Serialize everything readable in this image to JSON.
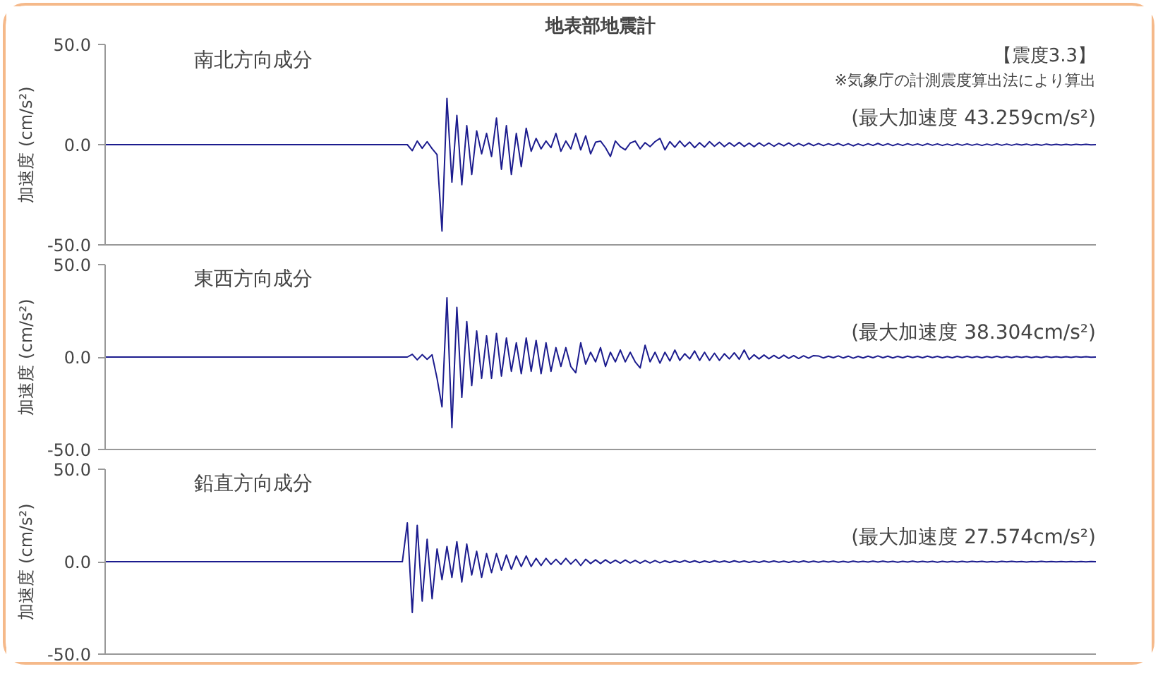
{
  "chart_data": [
    {
      "type": "line",
      "title": "地表部地震計",
      "subtitle": "南北方向成分",
      "ylabel": "加速度 (cm/s²)",
      "annotations": [
        "【震度3.3】",
        "※気象庁の計測震度算出法により算出",
        "(最大加速度 43.259cm/s²)"
      ],
      "ylim": [
        -50,
        50
      ],
      "yticks": [
        {
          "value": 50,
          "label": "50.0"
        },
        {
          "value": 0,
          "label": "0.0"
        },
        {
          "value": -50,
          "label": "-50.0"
        }
      ],
      "categories": [
        null,
        null,
        null,
        null,
        null,
        null,
        null,
        null,
        null,
        null,
        null,
        null,
        null,
        null,
        null,
        null,
        null,
        null,
        null,
        null,
        null,
        null,
        null,
        null,
        null,
        null,
        null,
        null,
        null,
        null,
        null,
        null,
        null,
        null,
        null,
        null,
        null,
        null,
        null,
        null,
        null,
        null,
        null,
        null,
        null,
        null,
        null,
        null,
        null,
        null,
        null,
        null,
        null,
        null,
        null,
        null,
        null,
        null,
        null,
        null,
        null,
        null,
        null,
        null,
        null,
        null,
        null,
        null,
        null,
        null,
        null,
        null,
        null,
        null,
        null,
        null,
        null,
        null,
        null,
        null,
        null,
        null,
        null,
        null,
        null,
        null,
        null,
        null,
        null,
        null,
        null,
        null,
        null,
        null,
        null,
        null,
        null,
        null,
        null,
        null,
        null,
        null,
        null,
        null,
        null,
        null,
        null,
        null,
        null,
        null,
        null,
        null,
        null,
        null,
        null,
        null,
        null,
        null,
        null,
        null,
        null,
        null,
        null,
        null,
        null,
        null,
        null,
        null,
        null,
        null,
        null,
        null,
        null,
        null,
        null,
        null,
        null,
        null,
        null,
        null,
        null,
        null,
        null,
        null,
        null,
        null,
        null,
        null,
        null,
        null,
        null,
        null,
        null,
        null,
        null,
        null,
        null,
        null,
        null,
        null,
        null,
        null,
        null,
        null,
        null,
        null,
        null,
        null,
        null,
        null,
        null,
        null,
        null,
        null,
        null,
        null,
        null,
        null,
        null,
        null,
        null,
        null,
        null,
        null,
        null,
        null,
        null,
        null,
        null,
        null,
        null,
        null,
        null,
        null,
        null,
        null,
        null,
        null,
        null,
        null,
        null
      ],
      "series": [
        {
          "color": "#1c1c8e",
          "values": [
            0,
            0,
            0,
            0,
            0,
            0,
            0,
            0,
            0,
            0,
            0,
            0,
            0,
            0,
            0,
            0,
            0,
            0,
            0,
            0,
            0,
            0,
            0,
            0,
            0,
            0,
            0,
            0,
            0,
            0,
            0,
            0,
            0,
            0,
            0,
            0,
            0,
            0,
            0,
            0,
            0,
            0,
            0,
            0,
            0,
            0,
            0,
            0,
            0,
            0,
            0,
            0,
            0,
            0,
            0,
            0,
            0,
            0,
            0,
            0,
            0,
            0,
            -3,
            1.8,
            -1.8,
            1.5,
            -2,
            -5,
            -43.1,
            23.1,
            -18.7,
            14.6,
            -20.0,
            9.5,
            -14.9,
            6.9,
            -4.6,
            5.6,
            -5.9,
            13.3,
            -12.3,
            9.5,
            -14.9,
            5.6,
            -11.0,
            8.2,
            -3.3,
            3.1,
            -2.1,
            1.8,
            -1.5,
            5.6,
            -3.3,
            1.8,
            -2.1,
            5.6,
            -2.6,
            4.4,
            -4.6,
            1.2,
            1.8,
            -1.5,
            -5.9,
            1.8,
            -1.0,
            -2.6,
            0.8,
            1.8,
            -2.1,
            1.0,
            -1.0,
            1.5,
            3.1,
            -2.6,
            1.5,
            -1.3,
            1.8,
            -1.0,
            1.3,
            -1.5,
            1.0,
            -1.2,
            1.5,
            -0.8,
            1.2,
            -1.0,
            1.0,
            -0.8,
            1.1,
            -0.9,
            0.8,
            -1.0,
            0.9,
            -0.7,
            0.8,
            -0.8,
            0.7,
            -0.6,
            0.8,
            -0.7,
            0.6,
            -0.6,
            0.7,
            -0.5,
            0.6,
            -0.5,
            0.5,
            -0.4,
            0.6,
            -0.5,
            0.5,
            -0.6,
            0.4,
            -0.5,
            0.5,
            -0.4,
            0.6,
            -0.4,
            0.5,
            -0.5,
            0.4,
            -0.4,
            0.5,
            -0.3,
            0.4,
            -0.4,
            0.5,
            -0.3,
            0.4,
            -0.4,
            0.3,
            -0.4,
            0.4,
            -0.3,
            0.4,
            -0.3,
            0.3,
            -0.4,
            0.3,
            -0.3,
            0.4,
            -0.3,
            0.3,
            -0.3,
            0.3,
            -0.2,
            0.3,
            -0.3,
            0.2,
            -0.3,
            0.3,
            -0.2,
            0.2,
            -0.2,
            0.2,
            -0.2,
            0.2,
            -0.1,
            0.2,
            -0.1,
            0
          ]
        }
      ]
    },
    {
      "type": "line",
      "subtitle": "東西方向成分",
      "ylabel": "加速度 (cm/s²)",
      "annotations": [
        "(最大加速度 38.304cm/s²)"
      ],
      "ylim": [
        -50,
        50
      ],
      "yticks": [
        {
          "value": 50,
          "label": "50.0"
        },
        {
          "value": 0,
          "label": "0.0"
        },
        {
          "value": -50,
          "label": "-50.0"
        }
      ],
      "categories": [
        null,
        null,
        null,
        null,
        null,
        null,
        null,
        null,
        null,
        null,
        null,
        null,
        null,
        null,
        null,
        null,
        null,
        null,
        null,
        null,
        null,
        null,
        null,
        null,
        null,
        null,
        null,
        null,
        null,
        null,
        null,
        null,
        null,
        null,
        null,
        null,
        null,
        null,
        null,
        null,
        null,
        null,
        null,
        null,
        null,
        null,
        null,
        null,
        null,
        null,
        null,
        null,
        null,
        null,
        null,
        null,
        null,
        null,
        null,
        null,
        null,
        null,
        null,
        null,
        null,
        null,
        null,
        null,
        null,
        null,
        null,
        null,
        null,
        null,
        null,
        null,
        null,
        null,
        null,
        null,
        null,
        null,
        null,
        null,
        null,
        null,
        null,
        null,
        null,
        null,
        null,
        null,
        null,
        null,
        null,
        null,
        null,
        null,
        null,
        null,
        null,
        null,
        null,
        null,
        null,
        null,
        null,
        null,
        null,
        null,
        null,
        null,
        null,
        null,
        null,
        null,
        null,
        null,
        null,
        null,
        null,
        null,
        null,
        null,
        null,
        null,
        null,
        null,
        null,
        null,
        null,
        null,
        null,
        null,
        null,
        null,
        null,
        null,
        null,
        null,
        null,
        null,
        null,
        null,
        null,
        null,
        null,
        null,
        null,
        null,
        null,
        null,
        null,
        null,
        null,
        null,
        null,
        null,
        null,
        null,
        null,
        null,
        null,
        null,
        null,
        null,
        null,
        null,
        null,
        null,
        null,
        null,
        null,
        null,
        null,
        null,
        null,
        null,
        null,
        null,
        null,
        null,
        null,
        null,
        null,
        null,
        null,
        null,
        null,
        null,
        null,
        null,
        null,
        null,
        null,
        null,
        null,
        null,
        null,
        null,
        null
      ],
      "series": [
        {
          "color": "#1c1c8e",
          "values": [
            0,
            0,
            0,
            0,
            0,
            0,
            0,
            0,
            0,
            0,
            0,
            0,
            0,
            0,
            0,
            0,
            0,
            0,
            0,
            0,
            0,
            0,
            0,
            0,
            0,
            0,
            0,
            0,
            0,
            0,
            0,
            0,
            0,
            0,
            0,
            0,
            0,
            0,
            0,
            0,
            0,
            0,
            0,
            0,
            0,
            0,
            0,
            0,
            0,
            0,
            0,
            0,
            0,
            0,
            0,
            0,
            0,
            0,
            0,
            0,
            0,
            0,
            1.5,
            -1.5,
            1.3,
            -1.2,
            1.2,
            -11.5,
            -26.9,
            32.1,
            -38.2,
            26.9,
            -21.8,
            19.2,
            -15.4,
            14.1,
            -11.5,
            11.5,
            -11.5,
            12.8,
            -10.3,
            10.3,
            -7.7,
            7.7,
            -9.0,
            10.3,
            -7.7,
            9.0,
            -9.0,
            7.7,
            -7.7,
            5.1,
            -5.1,
            5.1,
            -5.1,
            -8.5,
            7.7,
            -3.8,
            2.6,
            -2.6,
            5.1,
            -5.1,
            2.6,
            -2.6,
            3.8,
            -2.6,
            2.6,
            -2.6,
            -5.9,
            6.4,
            -2.6,
            2.6,
            -3.3,
            2.6,
            -2.1,
            3.8,
            -1.8,
            1.8,
            -1.0,
            3.3,
            -1.8,
            2.6,
            -1.8,
            2.1,
            -1.8,
            1.8,
            -1.0,
            2.3,
            -1.2,
            3.8,
            -1.3,
            1.2,
            -1.0,
            1.1,
            -0.9,
            0.9,
            -0.8,
            1.0,
            -0.7,
            0.8,
            -0.8,
            0.7,
            -0.6,
            0.8,
            0.6,
            -0.5,
            0.5,
            -0.4,
            0.6,
            -0.5,
            0.5,
            -0.6,
            0.4,
            -0.5,
            0.5,
            -0.4,
            0.6,
            -0.4,
            0.5,
            -0.5,
            0.4,
            -0.4,
            0.5,
            -0.3,
            0.4,
            -0.4,
            0.5,
            -0.3,
            0.4,
            -0.4,
            0.3,
            -0.4,
            0.4,
            -0.3,
            0.4,
            -0.3,
            0.3,
            -0.4,
            0.3,
            -0.3,
            0.4,
            -0.3,
            0.3,
            -0.3,
            0.3,
            -0.2,
            0.3,
            -0.3,
            0.2,
            -0.3,
            0.3,
            -0.2,
            0.2,
            -0.2,
            0.2,
            -0.2,
            0.2,
            -0.1,
            0.2,
            -0.1,
            0
          ]
        }
      ]
    },
    {
      "type": "line",
      "subtitle": "鉛直方向成分",
      "ylabel": "加速度 (cm/s²)",
      "annotations": [
        "(最大加速度 27.574cm/s²)"
      ],
      "ylim": [
        -50,
        50
      ],
      "yticks": [
        {
          "value": 50,
          "label": "50.0"
        },
        {
          "value": 0,
          "label": "0.0"
        },
        {
          "value": -50,
          "label": "-50.0"
        }
      ],
      "categories": [
        null,
        null,
        null,
        null,
        null,
        null,
        null,
        null,
        null,
        null,
        null,
        null,
        null,
        null,
        null,
        null,
        null,
        null,
        null,
        null,
        null,
        null,
        null,
        null,
        null,
        null,
        null,
        null,
        null,
        null,
        null,
        null,
        null,
        null,
        null,
        null,
        null,
        null,
        null,
        null,
        null,
        null,
        null,
        null,
        null,
        null,
        null,
        null,
        null,
        null,
        null,
        null,
        null,
        null,
        null,
        null,
        null,
        null,
        null,
        null,
        null,
        null,
        null,
        null,
        null,
        null,
        null,
        null,
        null,
        null,
        null,
        null,
        null,
        null,
        null,
        null,
        null,
        null,
        null,
        null,
        null,
        null,
        null,
        null,
        null,
        null,
        null,
        null,
        null,
        null,
        null,
        null,
        null,
        null,
        null,
        null,
        null,
        null,
        null,
        null,
        null,
        null,
        null,
        null,
        null,
        null,
        null,
        null,
        null,
        null,
        null,
        null,
        null,
        null,
        null,
        null,
        null,
        null,
        null,
        null,
        null,
        null,
        null,
        null,
        null,
        null,
        null,
        null,
        null,
        null,
        null,
        null,
        null,
        null,
        null,
        null,
        null,
        null,
        null,
        null,
        null,
        null,
        null,
        null,
        null,
        null,
        null,
        null,
        null,
        null,
        null,
        null,
        null,
        null,
        null,
        null,
        null,
        null,
        null,
        null,
        null,
        null,
        null,
        null,
        null,
        null,
        null,
        null,
        null,
        null,
        null,
        null,
        null,
        null,
        null,
        null,
        null,
        null,
        null,
        null,
        null,
        null,
        null,
        null,
        null,
        null,
        null,
        null,
        null,
        null,
        null,
        null,
        null,
        null,
        null,
        null,
        null,
        null,
        null,
        null,
        null
      ],
      "series": [
        {
          "color": "#1c1c8e",
          "values": [
            0,
            0,
            0,
            0,
            0,
            0,
            0,
            0,
            0,
            0,
            0,
            0,
            0,
            0,
            0,
            0,
            0,
            0,
            0,
            0,
            0,
            0,
            0,
            0,
            0,
            0,
            0,
            0,
            0,
            0,
            0,
            0,
            0,
            0,
            0,
            0,
            0,
            0,
            0,
            0,
            0,
            0,
            0,
            0,
            0,
            0,
            0,
            0,
            0,
            0,
            0,
            0,
            0,
            0,
            0,
            0,
            0,
            0,
            0,
            0,
            0,
            21.0,
            -27.5,
            19.7,
            -21.3,
            12.1,
            -20.0,
            6.9,
            -9.7,
            8.2,
            -8.5,
            10.8,
            -11.0,
            9.5,
            -7.2,
            5.6,
            -8.5,
            4.4,
            -5.9,
            4.4,
            -4.6,
            3.6,
            -4.1,
            3.1,
            -2.6,
            3.1,
            -2.6,
            1.8,
            -2.1,
            1.8,
            -1.5,
            1.3,
            -1.5,
            1.8,
            -1.3,
            1.3,
            -2.1,
            1.3,
            -1.0,
            1.0,
            -1.0,
            1.0,
            -0.8,
            0.8,
            -0.8,
            0.9,
            -0.7,
            0.7,
            -0.8,
            0.6,
            -0.7,
            0.6,
            -0.6,
            0.5,
            -0.5,
            0.5,
            -0.4,
            0.6,
            -0.4,
            0.5,
            -0.5,
            0.4,
            -0.4,
            0.5,
            -0.3,
            0.4,
            -0.4,
            0.5,
            -0.3,
            0.4,
            -0.4,
            0.3,
            -0.4,
            0.4,
            -0.3,
            0.4,
            -0.3,
            0.3,
            -0.4,
            0.3,
            -0.3,
            0.4,
            -0.3,
            0.3,
            -0.3,
            0.3,
            -0.2,
            0.3,
            -0.3,
            0.2,
            -0.3,
            0.3,
            -0.2,
            0.2,
            -0.2,
            0.3,
            -0.2,
            0.3,
            -0.2,
            0.2,
            -0.3,
            0.2,
            -0.2,
            0.3,
            -0.2,
            0.2,
            -0.2,
            0.2,
            -0.3,
            0.2,
            -0.2,
            0.2,
            -0.2,
            0.2,
            -0.2,
            0.2,
            -0.1,
            0.2,
            -0.2,
            0.1,
            -0.2,
            0.2,
            -0.1,
            0.2,
            -0.1,
            0.1,
            -0.2,
            0.1,
            -0.1,
            0.2,
            -0.1,
            0.1,
            -0.1,
            0.1,
            -0.1,
            0.1,
            -0.1,
            0.1,
            -0.1,
            0.1,
            0
          ]
        }
      ]
    }
  ]
}
